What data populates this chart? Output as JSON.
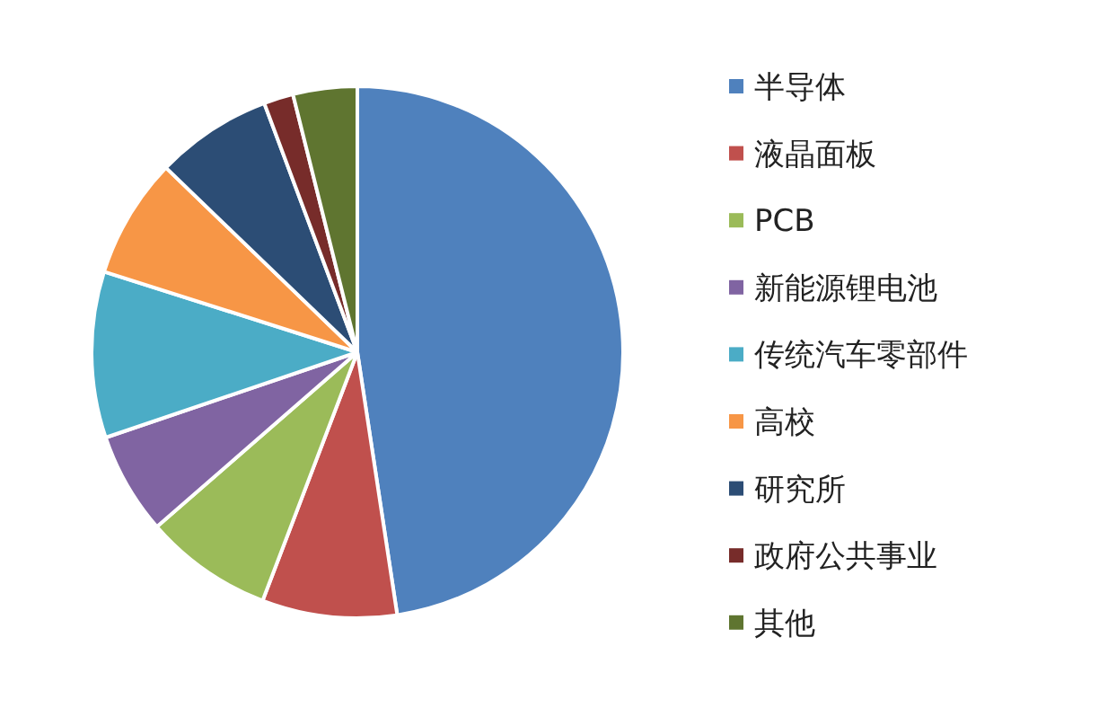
{
  "chart_data": {
    "type": "pie",
    "legend": "right",
    "categories": [
      "半导体",
      "液晶面板",
      "PCB",
      "新能源锂电池",
      "传统汽车零部件",
      "高校",
      "研究所",
      "政府公共事业",
      "其他"
    ],
    "values": [
      47.6,
      8.2,
      7.8,
      6.2,
      10.1,
      7.3,
      7.1,
      1.8,
      3.9
    ],
    "colors": [
      "#4f81bd",
      "#c0504d",
      "#9bbb59",
      "#8064a2",
      "#4bacc6",
      "#f79646",
      "#2c4d75",
      "#772c2a",
      "#5f7530"
    ]
  }
}
